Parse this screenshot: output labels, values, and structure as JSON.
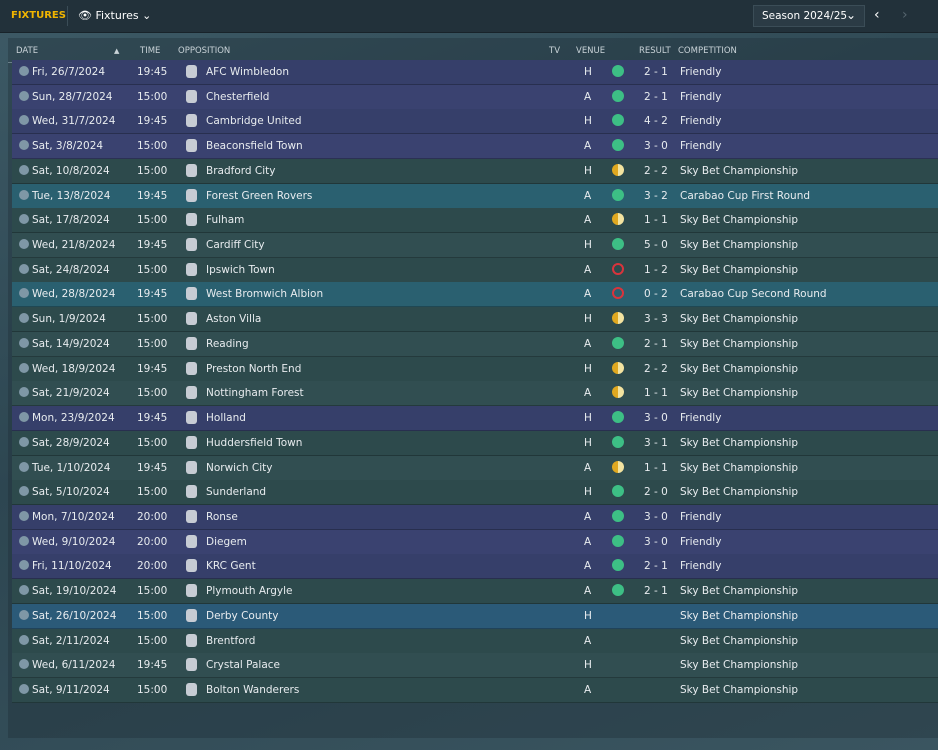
{
  "header": {
    "tab": "FIXTURES",
    "view": "Fixtures",
    "season": "Season 2024/25"
  },
  "columns": {
    "date": "DATE",
    "time": "TIME",
    "opposition": "OPPOSITION",
    "tv": "TV",
    "venue": "VENUE",
    "result": "RESULT",
    "competition": "COMPETITION"
  },
  "outcome_colors": {
    "win": "#3dbf85",
    "draw": "#e0a820",
    "loss": "#d9343c"
  },
  "rows": [
    {
      "date": "Fri, 26/7/2024",
      "time": "19:45",
      "opposition": "AFC Wimbledon",
      "venue": "H",
      "result": "2 - 1",
      "competition": "Friendly",
      "color": "#363f6a"
    },
    {
      "date": "Sun, 28/7/2024",
      "time": "15:00",
      "opposition": "Chesterfield",
      "venue": "A",
      "result": "2 - 1",
      "competition": "Friendly",
      "color": "#3a4270"
    },
    {
      "date": "Wed, 31/7/2024",
      "time": "19:45",
      "opposition": "Cambridge United",
      "venue": "H",
      "result": "4 - 2",
      "competition": "Friendly",
      "color": "#363f6a"
    },
    {
      "date": "Sat, 3/8/2024",
      "time": "15:00",
      "opposition": "Beaconsfield Town",
      "venue": "A",
      "result": "3 - 0",
      "competition": "Friendly",
      "color": "#3a4270"
    },
    {
      "date": "Sat, 10/8/2024",
      "time": "15:00",
      "opposition": "Bradford City",
      "venue": "H",
      "result": "2 - 2",
      "competition": "Sky Bet Championship",
      "color": "#2d4a4c"
    },
    {
      "date": "Tue, 13/8/2024",
      "time": "19:45",
      "opposition": "Forest Green Rovers",
      "venue": "A",
      "result": "3 - 2",
      "competition": "Carabao Cup First Round",
      "color": "#2a6070"
    },
    {
      "date": "Sat, 17/8/2024",
      "time": "15:00",
      "opposition": "Fulham",
      "venue": "A",
      "result": "1 - 1",
      "competition": "Sky Bet Championship",
      "color": "#2d4a4c"
    },
    {
      "date": "Wed, 21/8/2024",
      "time": "19:45",
      "opposition": "Cardiff City",
      "venue": "H",
      "result": "5 - 0",
      "competition": "Sky Bet Championship",
      "color": "#314e51"
    },
    {
      "date": "Sat, 24/8/2024",
      "time": "15:00",
      "opposition": "Ipswich Town",
      "venue": "A",
      "result": "1 - 2",
      "competition": "Sky Bet Championship",
      "color": "#2d4a4c"
    },
    {
      "date": "Wed, 28/8/2024",
      "time": "19:45",
      "opposition": "West Bromwich Albion",
      "venue": "A",
      "result": "0 - 2",
      "competition": "Carabao Cup Second Round",
      "color": "#2a6070"
    },
    {
      "date": "Sun, 1/9/2024",
      "time": "15:00",
      "opposition": "Aston Villa",
      "venue": "H",
      "result": "3 - 3",
      "competition": "Sky Bet Championship",
      "color": "#2d4a4c"
    },
    {
      "date": "Sat, 14/9/2024",
      "time": "15:00",
      "opposition": "Reading",
      "venue": "A",
      "result": "2 - 1",
      "competition": "Sky Bet Championship",
      "color": "#314e51"
    },
    {
      "date": "Wed, 18/9/2024",
      "time": "19:45",
      "opposition": "Preston North End",
      "venue": "H",
      "result": "2 - 2",
      "competition": "Sky Bet Championship",
      "color": "#2d4a4c"
    },
    {
      "date": "Sat, 21/9/2024",
      "time": "15:00",
      "opposition": "Nottingham Forest",
      "venue": "A",
      "result": "1 - 1",
      "competition": "Sky Bet Championship",
      "color": "#314e51"
    },
    {
      "date": "Mon, 23/9/2024",
      "time": "19:45",
      "opposition": "Holland",
      "venue": "H",
      "result": "3 - 0",
      "competition": "Friendly",
      "color": "#363f6a"
    },
    {
      "date": "Sat, 28/9/2024",
      "time": "15:00",
      "opposition": "Huddersfield Town",
      "venue": "H",
      "result": "3 - 1",
      "competition": "Sky Bet Championship",
      "color": "#2d4a4c"
    },
    {
      "date": "Tue, 1/10/2024",
      "time": "19:45",
      "opposition": "Norwich City",
      "venue": "A",
      "result": "1 - 1",
      "competition": "Sky Bet Championship",
      "color": "#314e51"
    },
    {
      "date": "Sat, 5/10/2024",
      "time": "15:00",
      "opposition": "Sunderland",
      "venue": "H",
      "result": "2 - 0",
      "competition": "Sky Bet Championship",
      "color": "#2d4a4c"
    },
    {
      "date": "Mon, 7/10/2024",
      "time": "20:00",
      "opposition": "Ronse",
      "venue": "A",
      "result": "3 - 0",
      "competition": "Friendly",
      "color": "#363f6a"
    },
    {
      "date": "Wed, 9/10/2024",
      "time": "20:00",
      "opposition": "Diegem",
      "venue": "A",
      "result": "3 - 0",
      "competition": "Friendly",
      "color": "#3a4270"
    },
    {
      "date": "Fri, 11/10/2024",
      "time": "20:00",
      "opposition": "KRC Gent",
      "venue": "A",
      "result": "2 - 1",
      "competition": "Friendly",
      "color": "#363f6a"
    },
    {
      "date": "Sat, 19/10/2024",
      "time": "15:00",
      "opposition": "Plymouth Argyle",
      "venue": "A",
      "result": "2 - 1",
      "competition": "Sky Bet Championship",
      "color": "#2d4a4c"
    },
    {
      "date": "Sat, 26/10/2024",
      "time": "15:00",
      "opposition": "Derby County",
      "venue": "H",
      "competition": "Sky Bet Championship",
      "color": "#2b5a78"
    },
    {
      "date": "Sat, 2/11/2024",
      "time": "15:00",
      "opposition": "Brentford",
      "venue": "A",
      "competition": "Sky Bet Championship",
      "color": "#2d4a4c"
    },
    {
      "date": "Wed, 6/11/2024",
      "time": "19:45",
      "opposition": "Crystal Palace",
      "venue": "H",
      "competition": "Sky Bet Championship",
      "color": "#314e51"
    },
    {
      "date": "Sat, 9/11/2024",
      "time": "15:00",
      "opposition": "Bolton Wanderers",
      "venue": "A",
      "competition": "Sky Bet Championship",
      "color": "#2d4a4c"
    }
  ]
}
